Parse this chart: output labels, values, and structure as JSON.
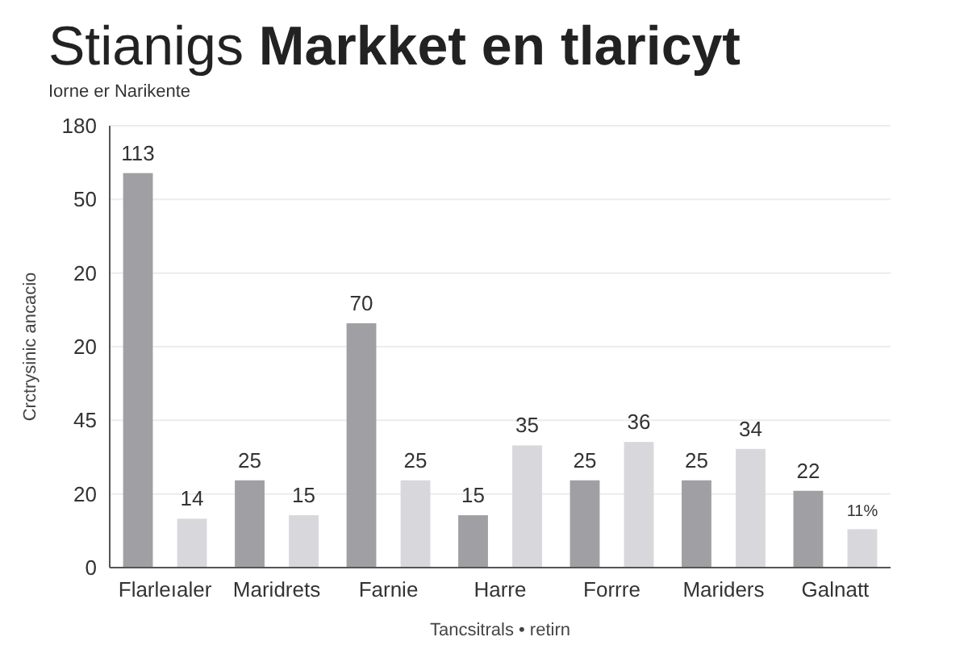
{
  "chart_data": {
    "type": "bar",
    "title": "Stianigs Markket en tlaricyt",
    "subtitle": "Iorne er Narikente",
    "ylabel": "Crctrysinic ancacio",
    "xlabel": "Tancsitrals • retirn",
    "categories": [
      "Flarleıaler",
      "Maridrets",
      "Farnie",
      "Harre",
      "Forrre",
      "Mariders",
      "Galnatt"
    ],
    "data_labels": true,
    "series": [
      {
        "color": "#a0a0a4",
        "values": [
          113,
          25,
          70,
          15,
          25,
          25,
          22
        ]
      },
      {
        "color": "#d8d8dc",
        "values": [
          14,
          15,
          25,
          35,
          36,
          34,
          11
        ],
        "value_labels": [
          "14",
          "15",
          "25",
          "35",
          "36",
          "34",
          "11%"
        ]
      }
    ],
    "annotations": [
      "0",
      "20",
      "45",
      "20",
      "20",
      "50",
      "180"
    ],
    "grid": "y"
  }
}
